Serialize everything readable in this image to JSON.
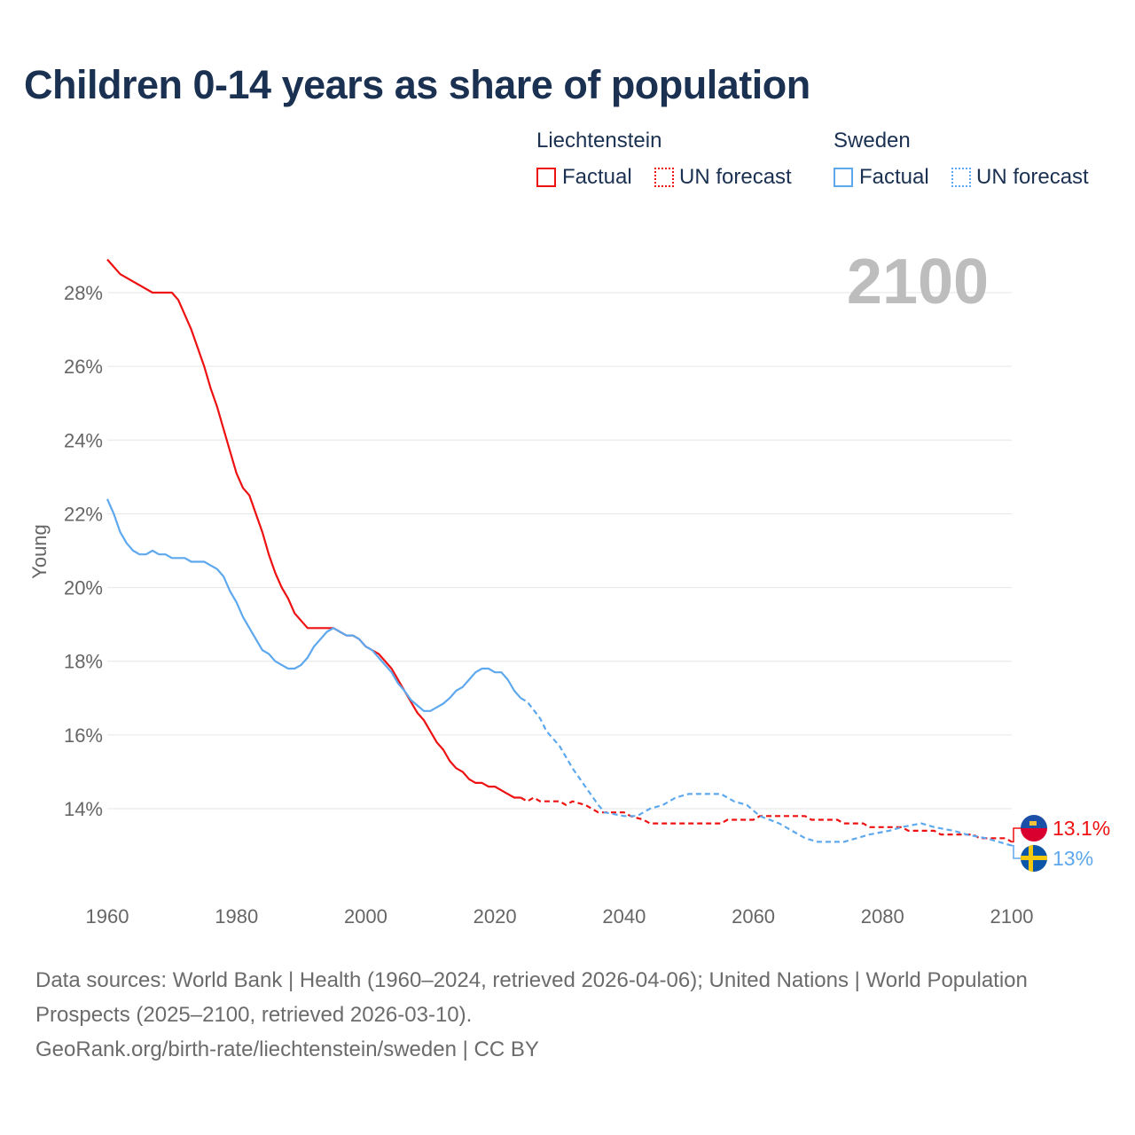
{
  "title": "Children 0-14 years as share of population",
  "legend": {
    "groups": [
      {
        "country": "Liechtenstein",
        "factual_label": "Factual",
        "forecast_label": "UN forecast",
        "color": "#ee1111"
      },
      {
        "country": "Sweden",
        "factual_label": "Factual",
        "forecast_label": "UN forecast",
        "color": "#5ea8ee"
      }
    ]
  },
  "chart_data": {
    "type": "line",
    "title": "Children 0-14 years as share of population",
    "xlabel": "",
    "ylabel": "Young",
    "xlim": [
      1960,
      2100
    ],
    "ylim": [
      12,
      29
    ],
    "x_ticks": [
      "1960",
      "1980",
      "2000",
      "2020",
      "2040",
      "2060",
      "2080",
      "2100"
    ],
    "y_ticks": [
      "14%",
      "16%",
      "18%",
      "20%",
      "22%",
      "24%",
      "26%",
      "28%"
    ],
    "year_label": "2100",
    "end_labels": [
      {
        "country": "Liechtenstein",
        "value": "13.1%"
      },
      {
        "country": "Sweden",
        "value": "13%"
      }
    ],
    "series": [
      {
        "name": "Liechtenstein",
        "kind": "factual",
        "color": "#ee1111",
        "x": [
          1960,
          1962,
          1967,
          1970,
          1971,
          1973,
          1975,
          1976,
          1977,
          1978,
          1979,
          1980,
          1981,
          1982,
          1984,
          1985,
          1986,
          1987,
          1988,
          1989,
          1991,
          1995,
          1996,
          1997,
          1998,
          1999,
          2000,
          2002,
          2004,
          2006,
          2008,
          2009,
          2010,
          2011,
          2012,
          2013,
          2014,
          2015,
          2016,
          2017,
          2018,
          2019,
          2020,
          2022,
          2023,
          2024
        ],
        "y": [
          28.9,
          28.5,
          28.0,
          28.0,
          27.8,
          27.0,
          26.0,
          25.4,
          24.9,
          24.3,
          23.7,
          23.1,
          22.7,
          22.5,
          21.5,
          20.9,
          20.4,
          20.0,
          19.7,
          19.3,
          18.9,
          18.9,
          18.8,
          18.7,
          18.7,
          18.6,
          18.4,
          18.2,
          17.8,
          17.2,
          16.6,
          16.4,
          16.1,
          15.8,
          15.6,
          15.3,
          15.1,
          15.0,
          14.8,
          14.7,
          14.7,
          14.6,
          14.6,
          14.4,
          14.3,
          14.3
        ]
      },
      {
        "name": "Liechtenstein",
        "kind": "forecast",
        "color": "#ee1111",
        "x": [
          2024,
          2025,
          2026,
          2027,
          2030,
          2031,
          2032,
          2034,
          2035,
          2036,
          2040,
          2041,
          2043,
          2044,
          2055,
          2056,
          2060,
          2061,
          2068,
          2069,
          2073,
          2074,
          2077,
          2078,
          2083,
          2084,
          2088,
          2089,
          2094,
          2095,
          2099,
          2100
        ],
        "y": [
          14.3,
          14.2,
          14.3,
          14.2,
          14.2,
          14.1,
          14.2,
          14.1,
          14.0,
          13.9,
          13.9,
          13.8,
          13.7,
          13.6,
          13.6,
          13.7,
          13.7,
          13.8,
          13.8,
          13.7,
          13.7,
          13.6,
          13.6,
          13.5,
          13.5,
          13.4,
          13.4,
          13.3,
          13.3,
          13.2,
          13.2,
          13.1
        ]
      },
      {
        "name": "Sweden",
        "kind": "factual",
        "color": "#5ea8ee",
        "x": [
          1960,
          1961,
          1962,
          1963,
          1964,
          1965,
          1966,
          1967,
          1968,
          1969,
          1970,
          1972,
          1973,
          1975,
          1977,
          1978,
          1979,
          1980,
          1981,
          1982,
          1983,
          1984,
          1985,
          1986,
          1987,
          1988,
          1989,
          1990,
          1991,
          1992,
          1993,
          1994,
          1995,
          1996,
          1997,
          1998,
          1999,
          2000,
          2001,
          2002,
          2003,
          2004,
          2005,
          2006,
          2007,
          2008,
          2009,
          2010,
          2011,
          2012,
          2013,
          2014,
          2015,
          2016,
          2017,
          2018,
          2019,
          2020,
          2021,
          2022,
          2023,
          2024
        ],
        "y": [
          22.4,
          22.0,
          21.5,
          21.2,
          21.0,
          20.9,
          20.9,
          21.0,
          20.9,
          20.9,
          20.8,
          20.8,
          20.7,
          20.7,
          20.5,
          20.3,
          19.9,
          19.6,
          19.2,
          18.9,
          18.6,
          18.3,
          18.2,
          18.0,
          17.9,
          17.8,
          17.8,
          17.9,
          18.1,
          18.4,
          18.6,
          18.8,
          18.9,
          18.8,
          18.7,
          18.7,
          18.6,
          18.4,
          18.3,
          18.1,
          17.9,
          17.7,
          17.4,
          17.2,
          16.95,
          16.8,
          16.65,
          16.65,
          16.75,
          16.85,
          17.0,
          17.2,
          17.3,
          17.5,
          17.7,
          17.8,
          17.8,
          17.7,
          17.7,
          17.5,
          17.2,
          17.0
        ]
      },
      {
        "name": "Sweden",
        "kind": "forecast",
        "color": "#5ea8ee",
        "x": [
          2024,
          2025,
          2027,
          2028,
          2030,
          2032,
          2034,
          2036,
          2037,
          2040,
          2042,
          2044,
          2046,
          2048,
          2050,
          2055,
          2057,
          2059,
          2061,
          2064,
          2066,
          2068,
          2070,
          2074,
          2076,
          2078,
          2081,
          2083,
          2086,
          2088,
          2091,
          2093,
          2096,
          2100
        ],
        "y": [
          17.0,
          16.9,
          16.45,
          16.1,
          15.7,
          15.1,
          14.6,
          14.1,
          13.9,
          13.8,
          13.8,
          14.0,
          14.1,
          14.3,
          14.4,
          14.4,
          14.2,
          14.1,
          13.8,
          13.6,
          13.4,
          13.2,
          13.1,
          13.1,
          13.2,
          13.3,
          13.4,
          13.5,
          13.6,
          13.5,
          13.4,
          13.3,
          13.2,
          13.0
        ]
      }
    ]
  },
  "footer": {
    "sources": "Data sources: World Bank | Health (1960–2024, retrieved 2026-04-06); United Nations | World Population Prospects (2025–2100, retrieved 2026-03-10).",
    "link": "GeoRank.org/birth-rate/liechtenstein/sweden | CC BY"
  }
}
